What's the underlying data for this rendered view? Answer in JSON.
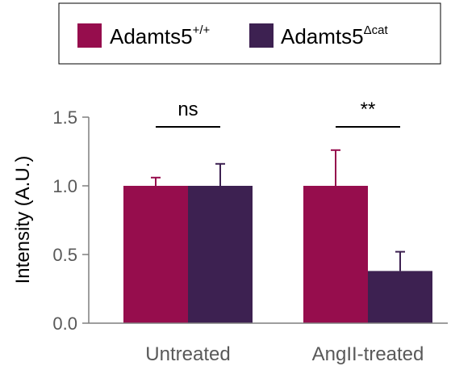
{
  "chart_data": {
    "type": "bar",
    "categories": [
      "Untreated",
      "AngII-treated"
    ],
    "series": [
      {
        "name": "Adamts5+/+",
        "name_base": "Adamts5",
        "name_sup": "+/+",
        "color": "#960d4d",
        "values": [
          1.0,
          1.0
        ],
        "error": [
          0.06,
          0.26
        ]
      },
      {
        "name": "Adamts5Δcat",
        "name_base": "Adamts5",
        "name_sup": "Δcat",
        "color": "#3d2151",
        "values": [
          1.0,
          0.38
        ],
        "error": [
          0.16,
          0.14
        ]
      }
    ],
    "ylabel": "Intensity (A.U.)",
    "ylim": [
      0,
      1.5
    ],
    "yticks": [
      "0.0",
      "0.5",
      "1.0",
      "1.5"
    ],
    "significance": [
      "ns",
      "**"
    ],
    "legend_position": "top",
    "grid": false
  }
}
